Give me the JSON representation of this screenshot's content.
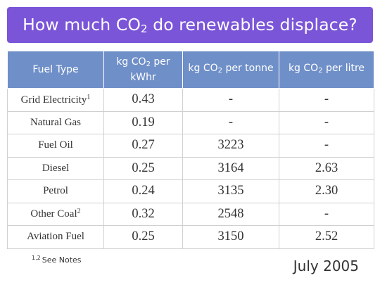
{
  "title": {
    "pre": "How much CO",
    "sub": "2",
    "post": " do renewables displace?"
  },
  "table": {
    "headers": [
      {
        "label": "Fuel Type"
      },
      {
        "pre": "kg CO",
        "sub": "2",
        "post": " per kWhr"
      },
      {
        "pre": "kg CO",
        "sub": "2",
        "post": " per tonne"
      },
      {
        "pre": "kg CO",
        "sub": "2",
        "post": " per litre"
      }
    ],
    "rows": [
      {
        "fuel": "Grid Electricity",
        "note": "1",
        "kwhr": "0.43",
        "tonne": "-",
        "litre": "-"
      },
      {
        "fuel": "Natural Gas",
        "note": "",
        "kwhr": "0.19",
        "tonne": "-",
        "litre": "-"
      },
      {
        "fuel": "Fuel Oil",
        "note": "",
        "kwhr": "0.27",
        "tonne": "3223",
        "litre": "-"
      },
      {
        "fuel": "Diesel",
        "note": "",
        "kwhr": "0.25",
        "tonne": "3164",
        "litre": "2.63"
      },
      {
        "fuel": "Petrol",
        "note": "",
        "kwhr": "0.24",
        "tonne": "3135",
        "litre": "2.30"
      },
      {
        "fuel": "Other Coal",
        "note": "2",
        "kwhr": "0.32",
        "tonne": "2548",
        "litre": "-"
      },
      {
        "fuel": "Aviation Fuel",
        "note": "",
        "kwhr": "0.25",
        "tonne": "3150",
        "litre": "2.52"
      }
    ]
  },
  "footnote": {
    "marks": "1,2",
    "text": "See Notes"
  },
  "date": "July 2005",
  "colors": {
    "banner": "#7b55d8",
    "header": "#6f8fc8",
    "border": "#d0d0d0"
  }
}
